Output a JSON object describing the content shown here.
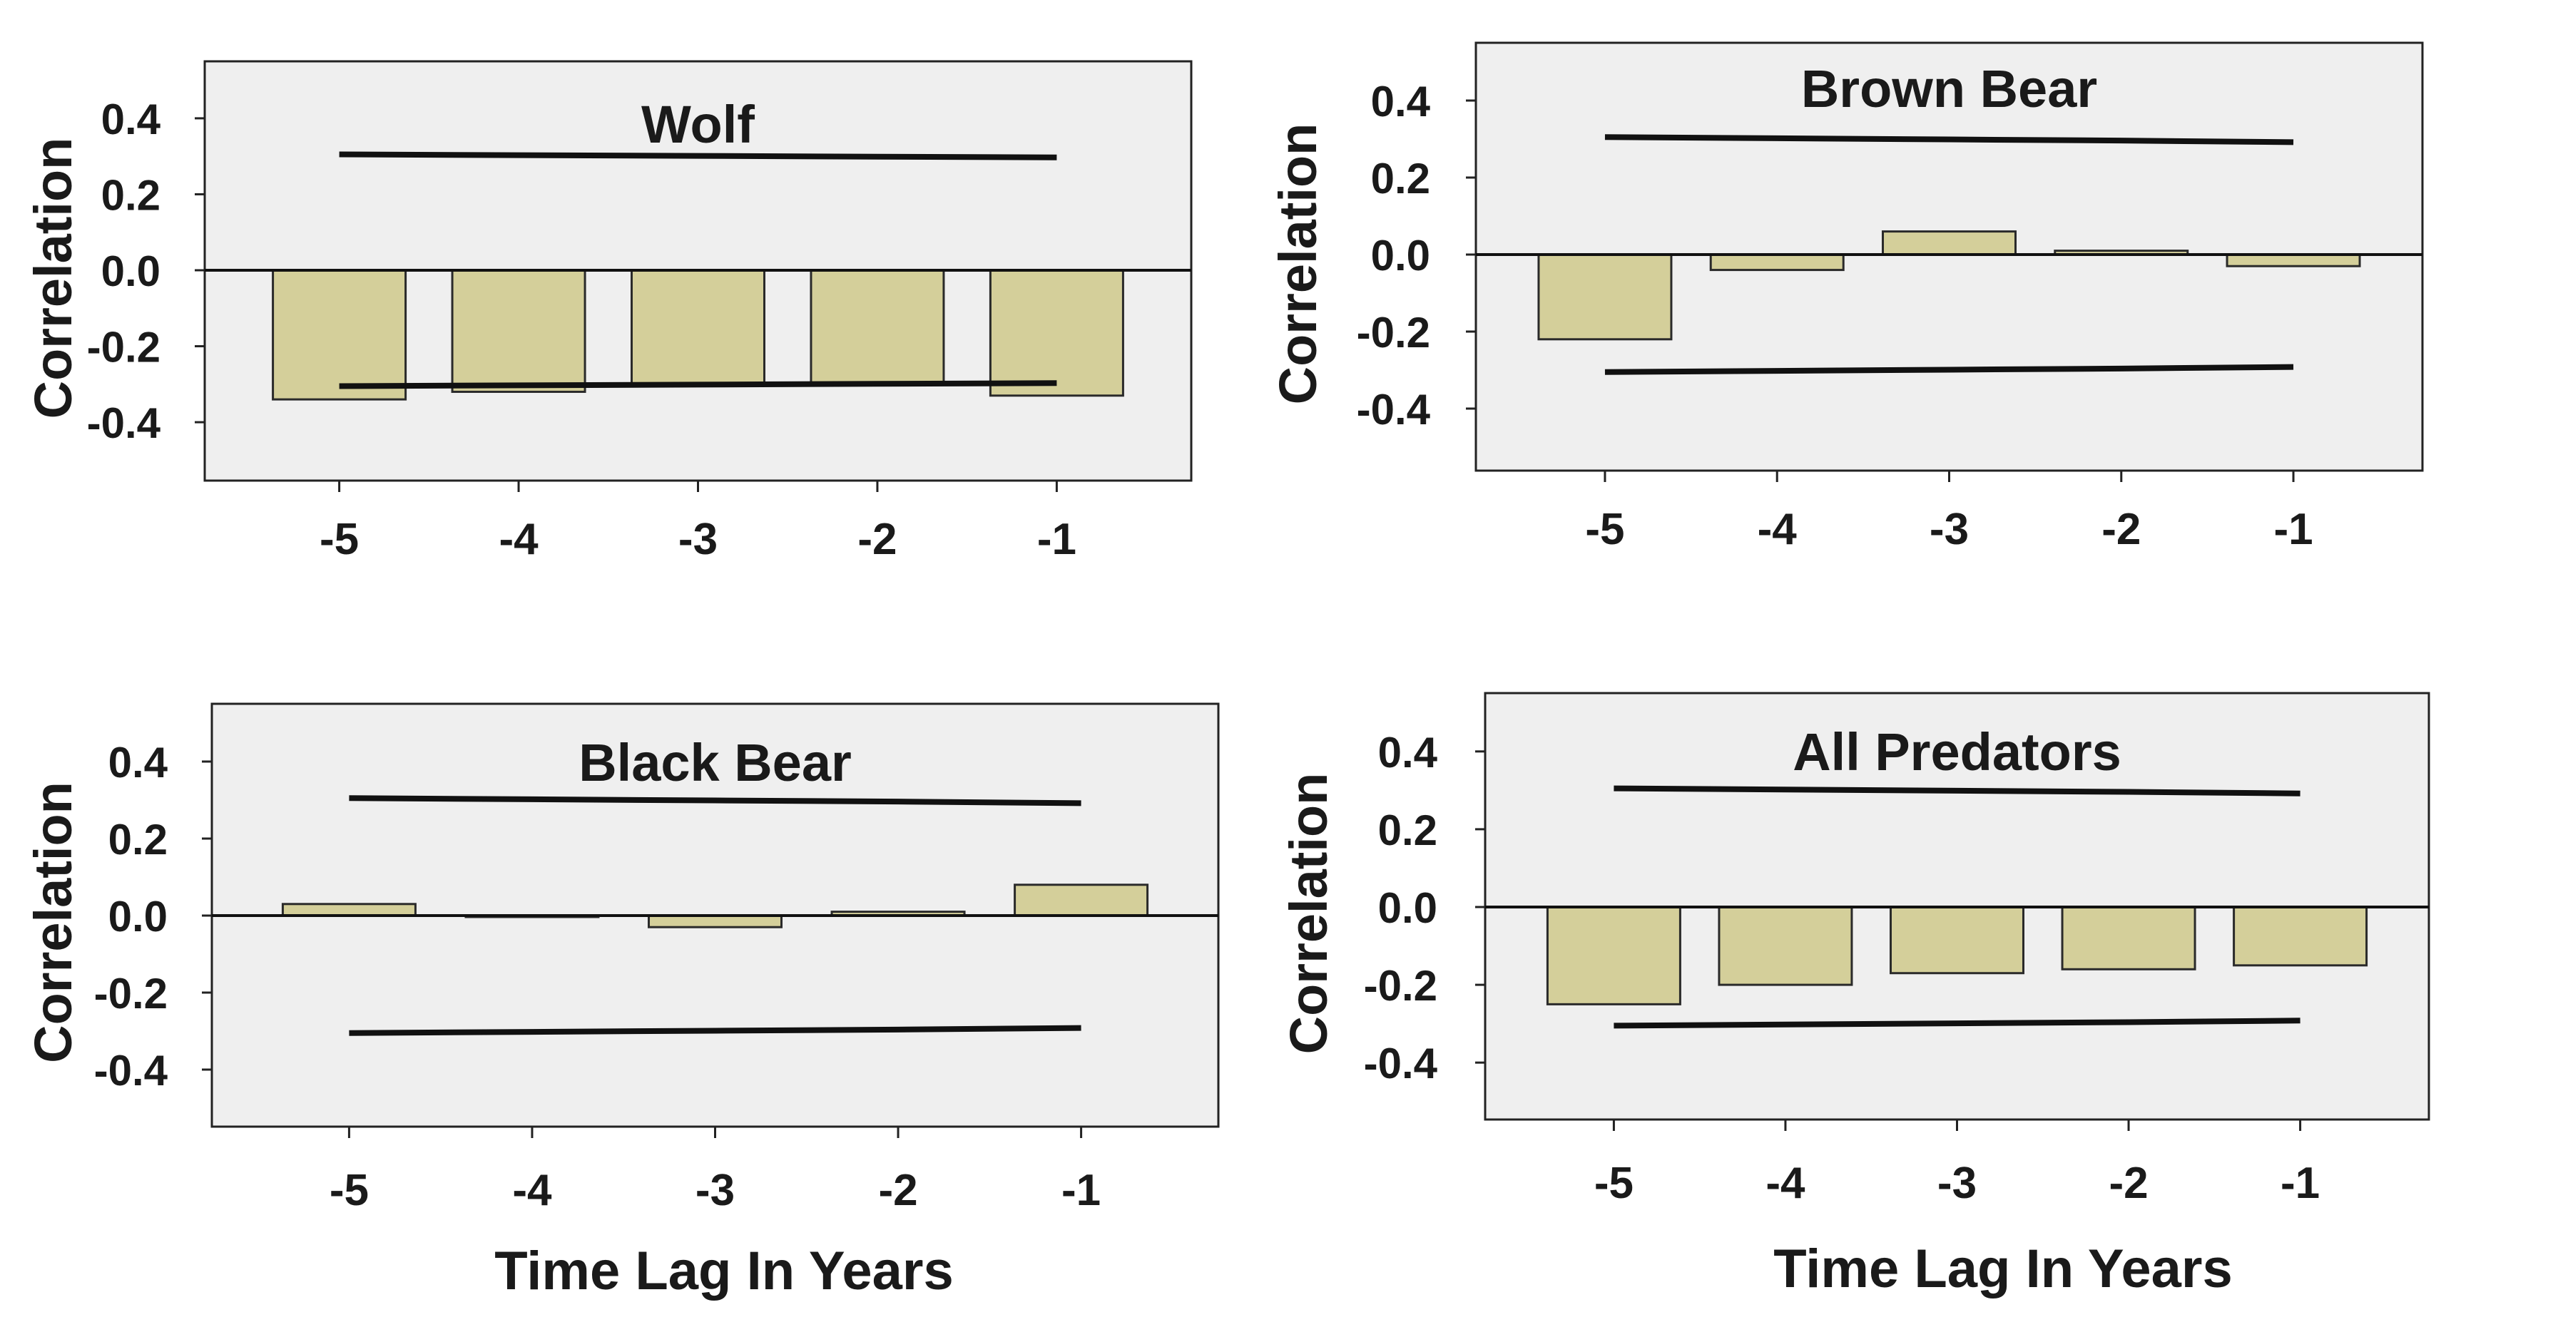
{
  "figure": {
    "xlabel": "Time Lag In Years",
    "colors": {
      "panel_bg": "#efefef",
      "bar_fill": "#d4cf9a",
      "bar_stroke": "#2a2a2a",
      "line": "#111111",
      "text": "#1a1a1a"
    }
  },
  "chart_data": [
    {
      "type": "bar",
      "title": "Wolf",
      "ylabel": "Correlation",
      "xlabel": "",
      "categories": [
        "-5",
        "-4",
        "-3",
        "-2",
        "-1"
      ],
      "values": [
        -0.34,
        -0.32,
        -0.3,
        -0.3,
        -0.33
      ],
      "upper_confidence_limit": [
        0.305,
        0.303,
        0.301,
        0.299,
        0.297
      ],
      "lower_confidence_limit": [
        -0.305,
        -0.303,
        -0.301,
        -0.299,
        -0.297
      ],
      "yticks": [
        "0.4",
        "0.2",
        "0.0",
        "-0.2",
        "-0.4"
      ],
      "ylim": [
        -0.55,
        0.55
      ],
      "grid": false
    },
    {
      "type": "bar",
      "title": "Brown Bear",
      "ylabel": "Correlation",
      "xlabel": "",
      "categories": [
        "-5",
        "-4",
        "-3",
        "-2",
        "-1"
      ],
      "values": [
        -0.22,
        -0.04,
        0.06,
        0.01,
        -0.03
      ],
      "upper_confidence_limit": [
        0.305,
        0.302,
        0.299,
        0.296,
        0.292
      ],
      "lower_confidence_limit": [
        -0.305,
        -0.302,
        -0.299,
        -0.296,
        -0.292
      ],
      "yticks": [
        "0.4",
        "0.2",
        "0.0",
        "-0.2",
        "-0.4"
      ],
      "ylim": [
        -0.55,
        0.55
      ],
      "grid": false
    },
    {
      "type": "bar",
      "title": "Black Bear",
      "ylabel": "Correlation",
      "xlabel": "Time Lag In Years",
      "categories": [
        "-5",
        "-4",
        "-3",
        "-2",
        "-1"
      ],
      "values": [
        0.03,
        0.0,
        -0.03,
        0.01,
        0.08
      ],
      "upper_confidence_limit": [
        0.305,
        0.302,
        0.299,
        0.296,
        0.292
      ],
      "lower_confidence_limit": [
        -0.305,
        -0.302,
        -0.299,
        -0.296,
        -0.292
      ],
      "yticks": [
        "0.4",
        "0.2",
        "0.0",
        "-0.2",
        "-0.4"
      ],
      "ylim": [
        -0.55,
        0.55
      ],
      "grid": false
    },
    {
      "type": "bar",
      "title": "All Predators",
      "ylabel": "Correlation",
      "xlabel": "Time Lag In Years",
      "categories": [
        "-5",
        "-4",
        "-3",
        "-2",
        "-1"
      ],
      "values": [
        -0.25,
        -0.2,
        -0.17,
        -0.16,
        -0.15
      ],
      "upper_confidence_limit": [
        0.305,
        0.302,
        0.299,
        0.296,
        0.292
      ],
      "lower_confidence_limit": [
        -0.305,
        -0.302,
        -0.299,
        -0.296,
        -0.292
      ],
      "yticks": [
        "0.4",
        "0.2",
        "0.0",
        "-0.2",
        "-0.4"
      ],
      "ylim": [
        -0.55,
        0.55
      ],
      "grid": false
    }
  ]
}
